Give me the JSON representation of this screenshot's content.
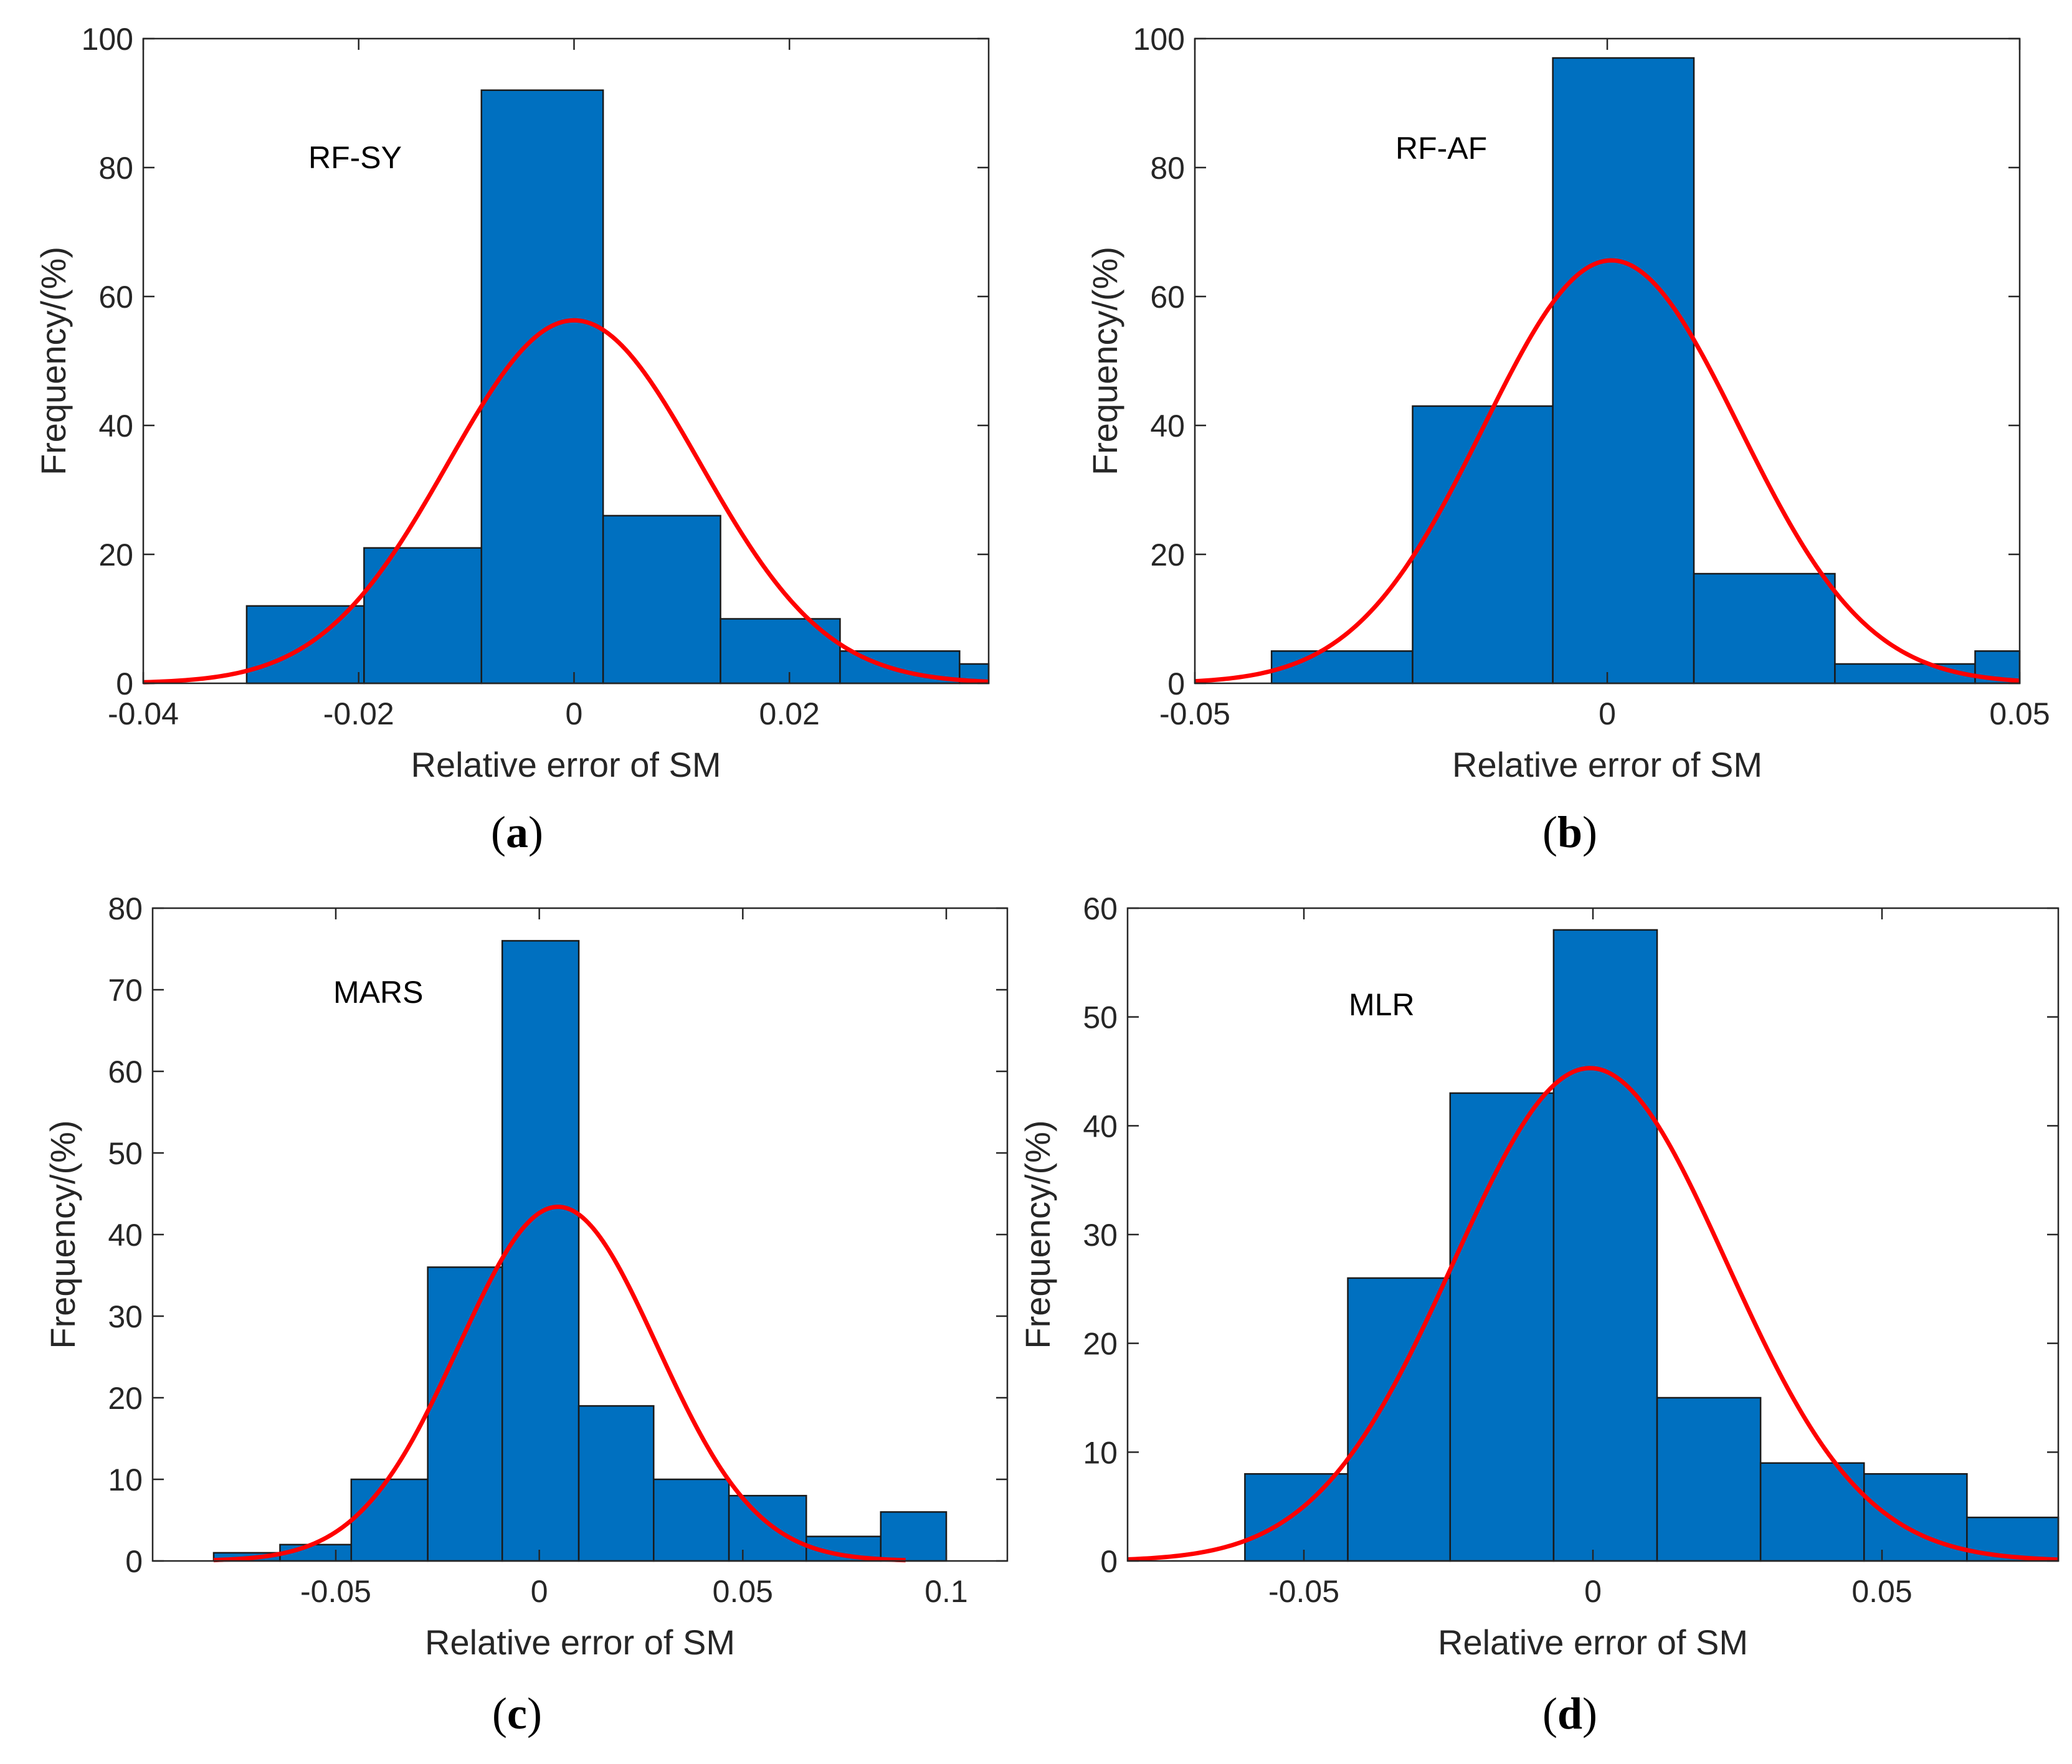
{
  "colors": {
    "bar": "#0070c0",
    "bar_edge": "#1a1a1a",
    "fit": "#ff0000",
    "axis": "#262626"
  },
  "chart_data": [
    {
      "id": "a",
      "type": "bar",
      "caption_letter": "a",
      "annotation": "RF-SY",
      "xlabel": "Relative error of SM",
      "ylabel": "Frequency/(%)",
      "xlim": [
        -0.04,
        0.0385
      ],
      "ylim": [
        0,
        100
      ],
      "xticks": [
        -0.04,
        -0.02,
        0,
        0.02
      ],
      "xtick_labels": [
        "-0.04",
        "-0.02",
        "0",
        "0.02"
      ],
      "yticks": [
        0,
        20,
        40,
        60,
        80,
        100
      ],
      "ytick_labels": [
        "0",
        "20",
        "40",
        "60",
        "80",
        "100"
      ],
      "bin_edges": [
        -0.0304,
        -0.0195,
        -0.0086,
        0.0027,
        0.0136,
        0.0247,
        0.0358,
        0.0385
      ],
      "values": [
        12,
        21,
        92,
        26,
        10,
        5,
        3
      ],
      "fit": {
        "type": "normal",
        "mu": 0.0,
        "sigma": 0.0117,
        "peak": 56.3,
        "x_range": [
          -0.04,
          0.0385
        ]
      }
    },
    {
      "id": "b",
      "type": "bar",
      "caption_letter": "b",
      "annotation": "RF-AF",
      "xlabel": "Relative error of SM",
      "ylabel": "Frequency/(%)",
      "xlim": [
        -0.05,
        0.05
      ],
      "ylim": [
        0,
        100
      ],
      "xticks": [
        -0.05,
        0,
        0.05
      ],
      "xtick_labels": [
        "-0.05",
        "0",
        "0.05"
      ],
      "yticks": [
        0,
        20,
        40,
        60,
        80,
        100
      ],
      "ytick_labels": [
        "0",
        "20",
        "40",
        "60",
        "80",
        "100"
      ],
      "bin_edges": [
        -0.0407,
        -0.0236,
        -0.0066,
        0.0105,
        0.0276,
        0.0446,
        0.05
      ],
      "values": [
        5,
        43,
        97,
        17,
        3,
        5
      ],
      "fit": {
        "type": "normal",
        "mu": 0.0005,
        "sigma": 0.0155,
        "peak": 65.6,
        "x_range": [
          -0.05,
          0.05
        ]
      }
    },
    {
      "id": "c",
      "type": "bar",
      "caption_letter": "c",
      "annotation": "MARS",
      "xlabel": "Relative error of SM",
      "ylabel": "Frequency/(%)",
      "xlim": [
        -0.095,
        0.115
      ],
      "ylim": [
        0,
        80
      ],
      "xticks": [
        -0.05,
        0,
        0.05,
        0.1
      ],
      "xtick_labels": [
        "-0.05",
        "0",
        "0.05",
        "0.1"
      ],
      "yticks": [
        0,
        10,
        20,
        30,
        40,
        50,
        60,
        70,
        80
      ],
      "ytick_labels": [
        "0",
        "10",
        "20",
        "30",
        "40",
        "50",
        "60",
        "70",
        "80"
      ],
      "bin_edges": [
        -0.08,
        -0.0637,
        -0.0462,
        -0.0274,
        -0.0091,
        0.0097,
        0.0281,
        0.0466,
        0.0656,
        0.0839,
        0.1
      ],
      "values": [
        1,
        2,
        10,
        36,
        76,
        19,
        10,
        8,
        3,
        6
      ],
      "fit": {
        "type": "normal",
        "mu": 0.0046,
        "sigma": 0.0244,
        "peak": 43.4,
        "x_range": [
          -0.08,
          0.09
        ]
      }
    },
    {
      "id": "d",
      "type": "bar",
      "caption_letter": "d",
      "annotation": "MLR",
      "xlabel": "Relative error of SM",
      "ylabel": "Frequency/(%)",
      "xlim": [
        -0.0805,
        0.0805
      ],
      "ylim": [
        0,
        60
      ],
      "xticks": [
        -0.05,
        0,
        0.05
      ],
      "xtick_labels": [
        "-0.05",
        "0",
        "0.05"
      ],
      "yticks": [
        0,
        10,
        20,
        30,
        40,
        50,
        60
      ],
      "ytick_labels": [
        "0",
        "10",
        "20",
        "30",
        "40",
        "50",
        "60"
      ],
      "bin_edges": [
        -0.0602,
        -0.0424,
        -0.0247,
        -0.0068,
        0.0111,
        0.029,
        0.0469,
        0.0647,
        0.0805
      ],
      "values": [
        8,
        26,
        43,
        58,
        15,
        9,
        8,
        4
      ],
      "fit": {
        "type": "normal",
        "mu": -0.0005,
        "sigma": 0.0236,
        "peak": 45.3,
        "x_range": [
          -0.0805,
          0.0805
        ]
      }
    }
  ]
}
